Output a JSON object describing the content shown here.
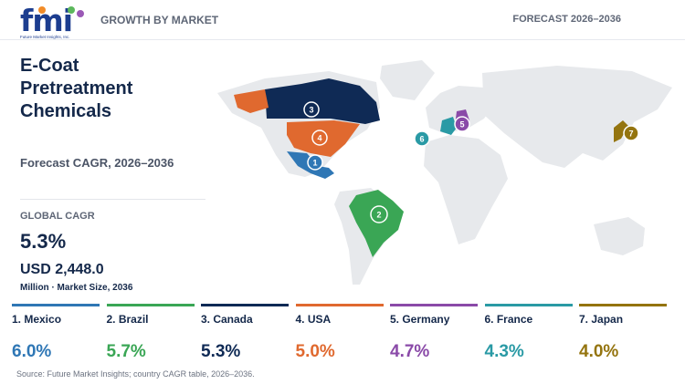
{
  "header": {
    "logo_text": "fmi",
    "logo_sub": "Future Market Insights, Inc.",
    "left_label": "GROWTH BY MARKET",
    "right_label": "FORECAST 2026–2036"
  },
  "title": "E-Coat\nPretreatment\nChemicals",
  "subtitle": "Forecast CAGR, 2026–2036",
  "global": {
    "label": "GLOBAL CAGR",
    "value": "5.3%",
    "market_size": "USD 2,448.0",
    "market_size_sub": "Million · Market Size, 2036"
  },
  "chart_data": {
    "type": "table",
    "metric": "CAGR",
    "unit": "%",
    "categories": [
      "Mexico",
      "Brazil",
      "Canada",
      "USA",
      "Germany",
      "France",
      "Japan"
    ],
    "ranks": [
      1,
      2,
      3,
      4,
      5,
      6,
      7
    ],
    "labels": [
      "1. Mexico",
      "2. Brazil",
      "3. Canada",
      "4. USA",
      "5. Germany",
      "6. France",
      "7. Japan"
    ],
    "values": [
      6.0,
      5.7,
      5.3,
      5.0,
      4.7,
      4.3,
      4.0
    ],
    "value_labels": [
      "6.0%",
      "5.7%",
      "5.3%",
      "5.0%",
      "4.7%",
      "4.3%",
      "4.0%"
    ],
    "colors": [
      "#2f77b5",
      "#3aa655",
      "#0f2a55",
      "#e0692f",
      "#8a4aa8",
      "#2a9aa5",
      "#94740f"
    ]
  },
  "source": "Source: Future Market Insights; country CAGR table, 2026–2036."
}
